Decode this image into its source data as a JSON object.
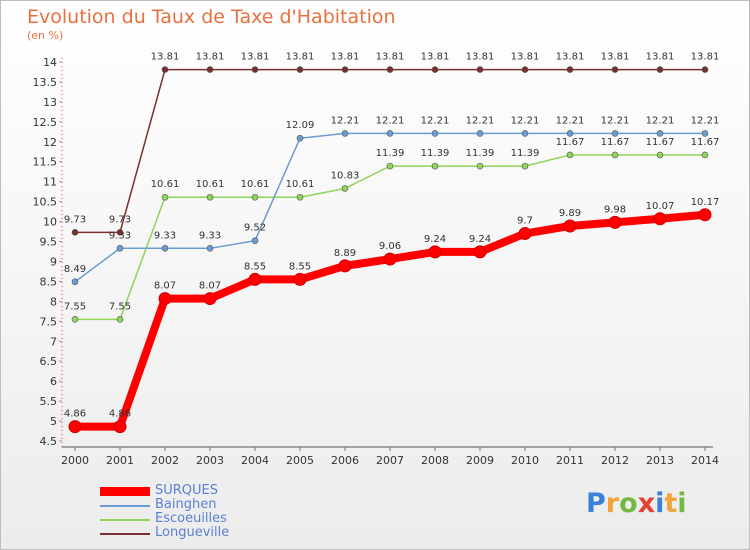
{
  "header": {
    "title": "Evolution du Taux de Taxe d'Habitation",
    "unit": "(en %)"
  },
  "logo": {
    "text": "Proxiti"
  },
  "chart_data": {
    "type": "line",
    "title": "Evolution du Taux de Taxe d'Habitation",
    "subtitle": "(en %)",
    "xlabel": "",
    "ylabel": "",
    "x": [
      "2000",
      "2001",
      "2002",
      "2003",
      "2004",
      "2005",
      "2006",
      "2007",
      "2008",
      "2009",
      "2010",
      "2011",
      "2012",
      "2013",
      "2014"
    ],
    "ylim": [
      4.5,
      14
    ],
    "yticks": [
      "4.5",
      "5",
      "5.5",
      "6",
      "6.5",
      "7",
      "7.5",
      "8",
      "8.5",
      "9",
      "9.5",
      "10",
      "10.5",
      "11",
      "11.5",
      "12",
      "12.5",
      "13",
      "13.5",
      "14"
    ],
    "grid": false,
    "legend_position": "bottom-left",
    "series": [
      {
        "name": "SURQUES",
        "color": "#ff0000",
        "values": [
          4.86,
          4.86,
          8.07,
          8.07,
          8.55,
          8.55,
          8.89,
          9.06,
          9.24,
          9.24,
          9.7,
          9.89,
          9.98,
          10.07,
          10.17
        ],
        "labels": [
          "4.86",
          "4.86",
          "8.07",
          "8.07",
          "8.55",
          "8.55",
          "8.89",
          "9.06",
          "9.24",
          "9.24",
          "9.7",
          "9.89",
          "9.98",
          "10.07",
          "10.17"
        ]
      },
      {
        "name": "Bainghen",
        "color": "#6a9bd2",
        "values": [
          8.49,
          9.33,
          9.33,
          9.33,
          9.52,
          12.09,
          12.21,
          12.21,
          12.21,
          12.21,
          12.21,
          12.21,
          12.21,
          12.21,
          12.21
        ],
        "labels": [
          "8.49",
          "9.33",
          "9.33",
          "9.33",
          "9.52",
          "12.09",
          "12.21",
          "12.21",
          "12.21",
          "12.21",
          "12.21",
          "12.21",
          "12.21",
          "12.21",
          "12.21"
        ]
      },
      {
        "name": "Escoeuilles",
        "color": "#8fd45a",
        "values": [
          7.55,
          7.55,
          10.61,
          10.61,
          10.61,
          10.61,
          10.83,
          11.39,
          11.39,
          11.39,
          11.39,
          11.67,
          11.67,
          11.67,
          11.67
        ],
        "labels": [
          "7.55",
          "7.55",
          "10.61",
          "10.61",
          "10.61",
          "10.61",
          "10.83",
          "11.39",
          "11.39",
          "11.39",
          "11.39",
          "11.67",
          "11.67",
          "11.67",
          "11.67"
        ]
      },
      {
        "name": "Longueville",
        "color": "#7a2f2f",
        "values": [
          9.73,
          9.73,
          13.81,
          13.81,
          13.81,
          13.81,
          13.81,
          13.81,
          13.81,
          13.81,
          13.81,
          13.81,
          13.81,
          13.81,
          13.81
        ],
        "labels": [
          "9.73",
          "9.73",
          "13.81",
          "13.81",
          "13.81",
          "13.81",
          "13.81",
          "13.81",
          "13.81",
          "13.81",
          "13.81",
          "13.81",
          "13.81",
          "13.81",
          "13.81"
        ]
      }
    ]
  }
}
